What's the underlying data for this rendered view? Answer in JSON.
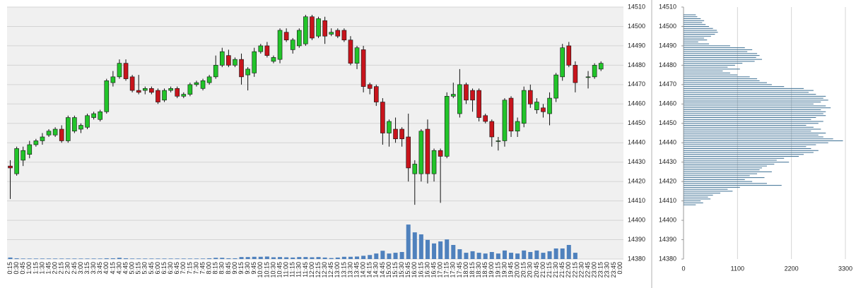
{
  "chart_data": [
    {
      "type": "candlestick",
      "categories": [
        "0:15",
        "0:30",
        "0:45",
        "1:00",
        "1:15",
        "1:30",
        "1:45",
        "2:00",
        "2:15",
        "2:30",
        "2:45",
        "3:00",
        "3:15",
        "3:30",
        "3:45",
        "4:00",
        "4:15",
        "4:30",
        "4:45",
        "5:00",
        "5:15",
        "5:30",
        "5:45",
        "6:00",
        "6:15",
        "6:30",
        "6:45",
        "7:00",
        "7:15",
        "7:30",
        "7:45",
        "8:00",
        "8:15",
        "8:30",
        "8:45",
        "9:00",
        "9:15",
        "9:30",
        "9:45",
        "10:00",
        "10:15",
        "10:30",
        "10:45",
        "11:00",
        "11:15",
        "11:30",
        "11:45",
        "12:00",
        "12:15",
        "12:30",
        "12:45",
        "13:00",
        "13:15",
        "13:30",
        "13:45",
        "14:00",
        "14:15",
        "14:30",
        "14:45",
        "15:00",
        "15:15",
        "15:30",
        "15:45",
        "16:00",
        "16:15",
        "16:30",
        "16:45",
        "17:00",
        "17:15",
        "17:30",
        "17:45",
        "18:00",
        "18:15",
        "18:30",
        "18:45",
        "19:00",
        "19:15",
        "19:30",
        "19:45",
        "20:00",
        "20:15",
        "20:30",
        "20:45",
        "21:00",
        "21:15",
        "21:30",
        "21:45",
        "22:00",
        "22:15",
        "22:30",
        "22:45",
        "23:00",
        "23:15",
        "23:30",
        "23:45",
        "0:00"
      ],
      "open": [
        14428,
        14424,
        14431,
        14434,
        14439,
        14441,
        14444,
        14444,
        14447,
        14441,
        14446,
        14447,
        14448,
        14453,
        14452,
        14456,
        14471,
        14474,
        14481,
        14474,
        14467,
        14467,
        14468,
        14467,
        14462,
        14467,
        14468,
        14464,
        14465,
        14470,
        14468,
        14471,
        14474,
        14480,
        14485,
        14480,
        14483,
        14475,
        14476,
        14487,
        14490,
        14482,
        14483,
        14497,
        14488,
        14490,
        14491,
        14505,
        14495,
        14503,
        14496,
        14498,
        14498,
        14493,
        14481,
        14488,
        14470,
        14469,
        14461,
        14445,
        14447,
        14447,
        14443,
        14424,
        14424,
        14447,
        14424,
        14436,
        14433,
        14464,
        14455,
        14470,
        14467,
        14467,
        14454,
        14451,
        14441,
        14441,
        14463,
        14446,
        14450,
        14467,
        14457,
        14458,
        14455,
        14463,
        14474,
        14490,
        14480,
        null,
        14474,
        14474,
        14478,
        null,
        null,
        null
      ],
      "high": [
        14431,
        14438,
        14438,
        14441,
        14442,
        14445,
        14447,
        14448,
        14449,
        14454,
        14454,
        14450,
        14455,
        14456,
        14457,
        14473,
        14477,
        14483,
        14483,
        14475,
        14475,
        14469,
        14469,
        14468,
        14468,
        14469,
        14469,
        14466,
        14471,
        14472,
        14473,
        14475,
        14485,
        14489,
        14488,
        14484,
        14486,
        14479,
        14489,
        14491,
        14492,
        14485,
        14499,
        14499,
        14494,
        14499,
        14506,
        14506,
        14505,
        14505,
        14499,
        14499,
        14499,
        14495,
        14490,
        14490,
        14471,
        14470,
        14463,
        14452,
        14453,
        14448,
        14455,
        14431,
        14447,
        14452,
        14437,
        14437,
        14466,
        14471,
        14478,
        14471,
        14468,
        14468,
        14455,
        14452,
        14443,
        14463,
        14464,
        14453,
        14469,
        14470,
        14463,
        14460,
        14466,
        14476,
        14491,
        14492,
        14482,
        null,
        14477,
        14481,
        14482,
        null,
        null,
        null
      ],
      "low": [
        14411,
        14423,
        14428,
        14432,
        14438,
        14439,
        14443,
        14443,
        14440,
        14440,
        14445,
        14445,
        14447,
        14452,
        14451,
        14455,
        14469,
        14473,
        14472,
        14466,
        14465,
        14465,
        14465,
        14460,
        14461,
        14466,
        14463,
        14463,
        14464,
        14469,
        14467,
        14470,
        14473,
        14479,
        14479,
        14479,
        14470,
        14467,
        14474,
        14486,
        14484,
        14481,
        14481,
        14492,
        14486,
        14489,
        14490,
        14493,
        14494,
        14491,
        14495,
        14494,
        14492,
        14480,
        14478,
        14466,
        14465,
        14459,
        14439,
        14438,
        14440,
        14438,
        14420,
        14408,
        14420,
        14419,
        14420,
        14409,
        14432,
        14463,
        14453,
        14460,
        14456,
        14451,
        14450,
        14438,
        14436,
        14438,
        14443,
        14443,
        14448,
        14458,
        14455,
        14453,
        14449,
        14461,
        14472,
        14479,
        14466,
        null,
        14468,
        14473,
        14477,
        null,
        null,
        null
      ],
      "close": [
        14427,
        14437,
        14436,
        14439,
        14441,
        14443,
        14446,
        14447,
        14441,
        14453,
        14453,
        14449,
        14454,
        14455,
        14456,
        14472,
        14474,
        14481,
        14473,
        14467,
        14466,
        14468,
        14466,
        14461,
        14467,
        14468,
        14464,
        14465,
        14470,
        14471,
        14472,
        14474,
        14480,
        14487,
        14480,
        14483,
        14474,
        14478,
        14487,
        14490,
        14485,
        14484,
        14498,
        14493,
        14493,
        14498,
        14505,
        14494,
        14504,
        14495,
        14497,
        14495,
        14493,
        14481,
        14489,
        14469,
        14468,
        14461,
        14445,
        14451,
        14442,
        14442,
        14427,
        14429,
        14446,
        14424,
        14436,
        14433,
        14464,
        14465,
        14470,
        14462,
        14462,
        14453,
        14451,
        14443,
        14441,
        14462,
        14446,
        14451,
        14467,
        14460,
        14461,
        14456,
        14463,
        14475,
        14489,
        14480,
        14471,
        null,
        14474,
        14480,
        14481,
        null,
        null,
        null
      ],
      "volume": [
        0.6,
        0.3,
        0.2,
        0.2,
        0.2,
        0.2,
        0.2,
        0.2,
        0.2,
        0.2,
        0.2,
        0.2,
        0.2,
        0.2,
        0.2,
        0.3,
        0.3,
        0.5,
        0.3,
        0.2,
        0.2,
        0.2,
        0.2,
        0.2,
        0.2,
        0.2,
        0.2,
        0.2,
        0.2,
        0.2,
        0.2,
        0.3,
        0.5,
        0.5,
        0.3,
        0.3,
        0.8,
        0.8,
        0.9,
        0.9,
        1.0,
        0.7,
        0.8,
        0.7,
        0.6,
        0.8,
        0.8,
        0.7,
        0.8,
        0.6,
        0.4,
        0.6,
        0.9,
        0.9,
        1.0,
        1.3,
        1.6,
        2.2,
        3.3,
        2.2,
        2.5,
        2.8,
        13.7,
        10.6,
        9.8,
        7.6,
        6.2,
        7.0,
        7.8,
        5.6,
        3.9,
        2.5,
        3.1,
        2.5,
        2.2,
        2.8,
        2.2,
        3.4,
        2.5,
        2.2,
        3.4,
        2.8,
        3.4,
        2.5,
        3.1,
        4.2,
        4.2,
        5.6,
        2.5,
        null,
        null,
        null,
        null,
        null,
        null,
        null
      ],
      "vlim": [
        0,
        100
      ],
      "ylim": [
        14380,
        14510
      ],
      "yticks": [
        14380,
        14390,
        14400,
        14410,
        14420,
        14430,
        14440,
        14450,
        14460,
        14470,
        14480,
        14490,
        14500,
        14510
      ],
      "grid": true,
      "up_color": "#22c42a",
      "down_color": "#c8141c",
      "volume_color": "#4f81bd"
    },
    {
      "type": "profile",
      "y": [
        14506,
        14505,
        14504,
        14503,
        14502,
        14501,
        14500,
        14499,
        14498,
        14497,
        14496,
        14495,
        14494,
        14493,
        14492,
        14491,
        14490,
        14489,
        14488,
        14487,
        14486,
        14485,
        14484,
        14483,
        14482,
        14481,
        14480,
        14479,
        14478,
        14477,
        14476,
        14475,
        14474,
        14473,
        14472,
        14471,
        14470,
        14469,
        14468,
        14467,
        14466,
        14465,
        14464,
        14463,
        14462,
        14461,
        14460,
        14459,
        14458,
        14457,
        14456,
        14455,
        14454,
        14453,
        14452,
        14451,
        14450,
        14449,
        14448,
        14447,
        14446,
        14445,
        14444,
        14443,
        14442,
        14441,
        14440,
        14439,
        14438,
        14437,
        14436,
        14435,
        14434,
        14433,
        14432,
        14431,
        14430,
        14429,
        14428,
        14427,
        14426,
        14425,
        14424,
        14423,
        14422,
        14421,
        14420,
        14419,
        14418,
        14417,
        14416,
        14415,
        14414,
        14413,
        14412,
        14411,
        14410,
        14409,
        14408
      ],
      "values": [
        250,
        280,
        350,
        420,
        380,
        450,
        520,
        600,
        680,
        700,
        640,
        560,
        420,
        480,
        300,
        520,
        950,
        1250,
        1400,
        1300,
        1500,
        1550,
        1480,
        1600,
        1450,
        1200,
        1050,
        900,
        1150,
        800,
        950,
        1100,
        1350,
        1500,
        1550,
        1700,
        1800,
        2050,
        2450,
        2650,
        2550,
        2700,
        2900,
        2850,
        2950,
        2800,
        2650,
        2900,
        3000,
        2800,
        2900,
        2850,
        2900,
        2700,
        2600,
        2850,
        2750,
        2500,
        2650,
        2800,
        2600,
        2900,
        2750,
        2850,
        3050,
        3250,
        2950,
        2700,
        2500,
        2600,
        2750,
        2650,
        2450,
        2350,
        2050,
        1900,
        2150,
        1850,
        1700,
        1600,
        1550,
        1800,
        1500,
        1350,
        1650,
        1250,
        1400,
        1700,
        2000,
        1150,
        900,
        1000,
        750,
        600,
        500,
        550,
        350,
        400,
        250
      ],
      "xlim": [
        0,
        3300
      ],
      "xticks": [
        0,
        1100,
        2200,
        3300
      ],
      "ylim": [
        14380,
        14510
      ],
      "yticks": [
        14380,
        14390,
        14400,
        14410,
        14420,
        14430,
        14440,
        14450,
        14460,
        14470,
        14480,
        14490,
        14500,
        14510
      ],
      "grid": true,
      "color": "#3c6f93"
    }
  ]
}
